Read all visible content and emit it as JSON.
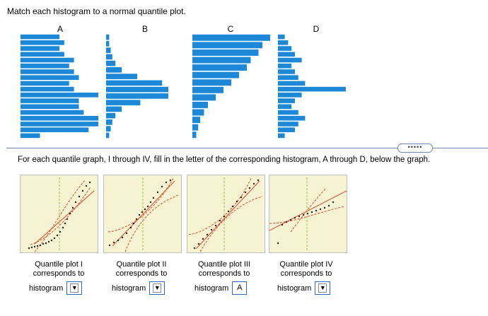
{
  "instructions": {
    "top": "Match each histogram to a normal quantile plot.",
    "bottom": "For each quantile graph, I through IV, fill in the letter of the corresponding histogram, A through D, below the graph."
  },
  "histograms": [
    {
      "letter": "A",
      "bars": [
        8,
        28,
        32,
        32,
        26,
        24,
        24,
        32,
        22,
        20,
        24,
        22,
        20,
        22,
        18,
        16,
        18,
        16
      ]
    },
    {
      "letter": "B",
      "bars": [
        2,
        3,
        4,
        6,
        10,
        22,
        40,
        40,
        36,
        20,
        10,
        6,
        4,
        3,
        2,
        2
      ]
    },
    {
      "letter": "C",
      "bars": [
        2,
        3,
        4,
        6,
        8,
        12,
        16,
        20,
        24,
        28,
        30,
        34,
        36,
        40
      ]
    },
    {
      "letter": "D",
      "bars": [
        4,
        10,
        12,
        16,
        12,
        8,
        10,
        14,
        40,
        16,
        12,
        10,
        8,
        14,
        10,
        8,
        6,
        4
      ]
    }
  ],
  "more_button": "•••••",
  "colors": {
    "bar": "#1e88d8",
    "panel_bg": "#f5f3d2",
    "fit_line": "#e8442a",
    "band": "#e8442a",
    "center_line": "#8cc63f",
    "point": "#222222",
    "divider": "#6d8ab0",
    "dropdown_border": "#2c67c4"
  },
  "quantile_plots": [
    {
      "caption_line1": "Quantile plot I",
      "caption_line2": "corresponds to",
      "histogram_label": "histogram",
      "selected": ""
    },
    {
      "caption_line1": "Quantile plot II",
      "caption_line2": "corresponds to",
      "histogram_label": "histogram",
      "selected": ""
    },
    {
      "caption_line1": "Quantile plot III",
      "caption_line2": "corresponds to",
      "histogram_label": "histogram",
      "selected": "A"
    },
    {
      "caption_line1": "Quantile plot IV",
      "caption_line2": "corresponds to",
      "histogram_label": "histogram",
      "selected": ""
    }
  ],
  "dropdown_icon": "triangle-down-icon"
}
